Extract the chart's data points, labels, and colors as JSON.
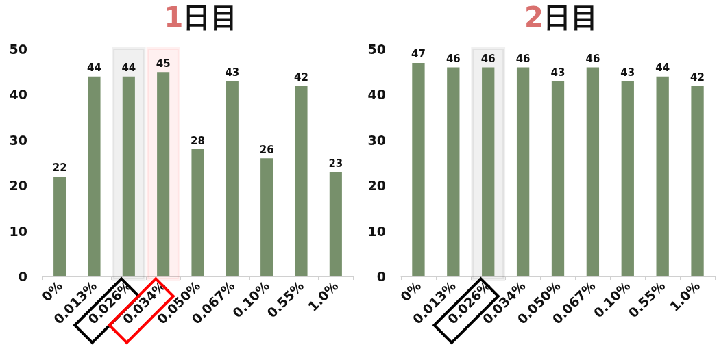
{
  "chart_data": [
    {
      "type": "bar",
      "title": "1日目",
      "categories": [
        "0%",
        "0.013%",
        "0.026%",
        "0.034%",
        "0.050%",
        "0.067%",
        "0.10%",
        "0.55%",
        "1.0%"
      ],
      "values": [
        22,
        44,
        44,
        45,
        28,
        43,
        26,
        42,
        23
      ],
      "color": "#77906b",
      "ylim": [
        0,
        50
      ],
      "yticks": [
        0,
        10,
        20,
        30,
        40,
        50
      ],
      "grid": false,
      "data_labels": true,
      "bands": [
        {
          "axis": "x",
          "from": "0.026%",
          "to": "0.026%",
          "color": "#000000"
        },
        {
          "axis": "x",
          "from": "0.034%",
          "to": "0.034%",
          "color": "#ff0000"
        }
      ]
    },
    {
      "type": "bar",
      "title": "2日目",
      "categories": [
        "0%",
        "0.013%",
        "0.026%",
        "0.034%",
        "0.050%",
        "0.067%",
        "0.10%",
        "0.55%",
        "1.0%"
      ],
      "values": [
        47,
        46,
        46,
        46,
        43,
        46,
        43,
        44,
        42
      ],
      "color": "#77906b",
      "ylim": [
        0,
        50
      ],
      "yticks": [
        0,
        10,
        20,
        30,
        40,
        50
      ],
      "grid": false,
      "data_labels": true,
      "bands": [
        {
          "axis": "x",
          "from": "0.026%",
          "to": "0.026%",
          "color": "#000000"
        }
      ]
    }
  ]
}
